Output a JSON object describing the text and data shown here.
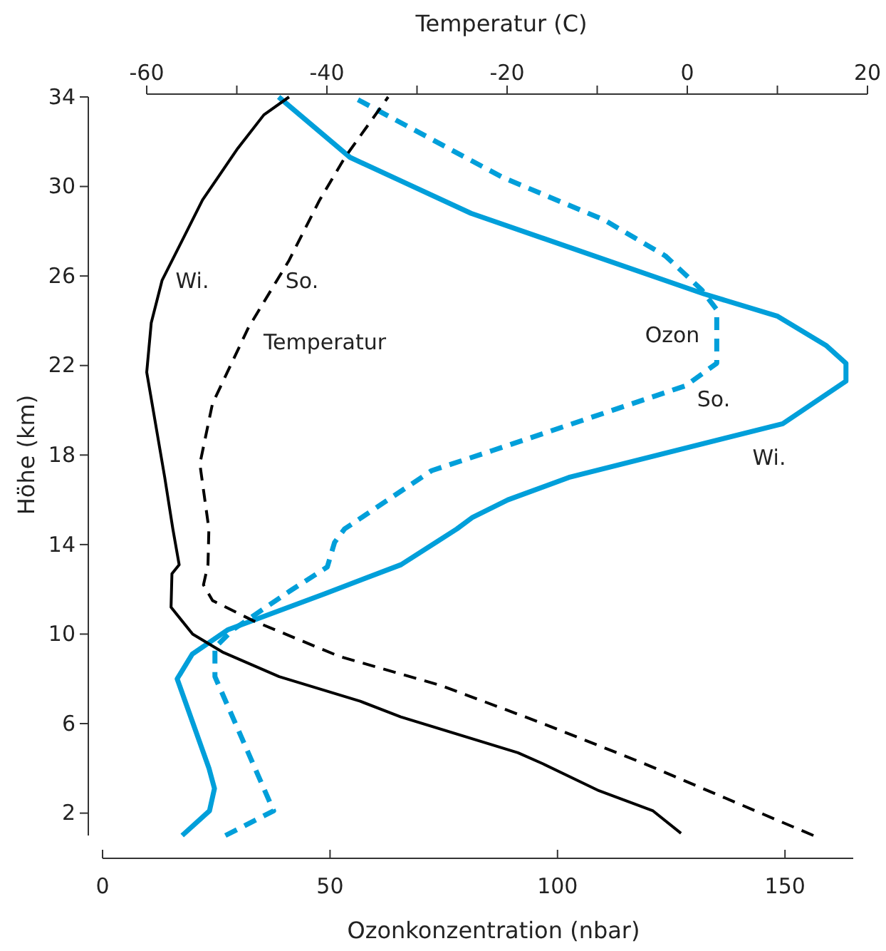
{
  "chart_data": {
    "type": "line",
    "xlabel": "Ozonkonzentration (nbar)",
    "x2label": "Temperatur (C)",
    "ylabel": "Höhe (km)",
    "xlim": [
      0,
      165
    ],
    "xticks": [
      0,
      50,
      100,
      150
    ],
    "x2lim": [
      -60,
      20
    ],
    "x2ticks": [
      -60,
      {
        "value": -50,
        "label": null
      },
      -40,
      {
        "value": -30,
        "label": null
      },
      -20,
      {
        "value": -10,
        "label": null
      },
      0,
      {
        "value": 10,
        "label": null
      },
      20
    ],
    "ylim": [
      1,
      34
    ],
    "yticks": [
      2,
      6,
      10,
      14,
      18,
      22,
      26,
      30,
      34
    ],
    "grid": false,
    "marker": "none",
    "series": [
      {
        "color": "#009fda",
        "line_style": "solid",
        "x": [
          17.5,
          23.5,
          24.6,
          23.4,
          16.4,
          19.7,
          27.6,
          48.8,
          65.6,
          77.9,
          81.2,
          89.1,
          102.5,
          149.5,
          163.4,
          163.4,
          159,
          148.4,
          132.2,
          81,
          54.4,
          38.7
        ],
        "values": [
          1.0,
          2.1,
          3.1,
          4.0,
          8.0,
          9.1,
          10.2,
          11.8,
          13.1,
          14.7,
          15.2,
          16.0,
          17.0,
          19.4,
          21.3,
          22.1,
          22.9,
          24.2,
          25.2,
          28.8,
          31.3,
          34
        ]
      },
      {
        "color": "#009fda",
        "line_style": "dashed",
        "x": [
          27,
          37.6,
          24.7,
          24.7,
          28.7,
          41,
          49.4,
          51,
          53.2,
          72.3,
          85.7,
          128.2,
          135,
          135,
          131.6,
          123.7,
          110.3,
          88,
          55
        ],
        "values": [
          1.0,
          2.1,
          8.1,
          9.4,
          10.2,
          11.9,
          13.0,
          14.1,
          14.7,
          17.3,
          18.2,
          21.1,
          22.1,
          24.5,
          25.4,
          26.9,
          28.5,
          30.4,
          34
        ]
      },
      {
        "color": "#000000",
        "line_style": "solid",
        "axis": "x2",
        "x": [
          -0.7,
          -3.8,
          -9.8,
          -16,
          -18.8,
          -31.8,
          -36.3,
          -45.3,
          -51.6,
          -54.9,
          -57.3,
          -57.2,
          -56.4,
          -57.1,
          -58,
          -60,
          -59.5,
          -58.3,
          -53.8,
          -49.9,
          -47,
          -44.2
        ],
        "values": [
          1.1,
          2.1,
          3.0,
          4.2,
          4.7,
          6.3,
          7.0,
          8.1,
          9.2,
          10.0,
          11.2,
          12.7,
          13.1,
          14.7,
          17.0,
          21.7,
          23.9,
          25.8,
          29.4,
          31.7,
          33.2,
          34
        ]
      },
      {
        "color": "#000000",
        "line_style": "dashed",
        "axis": "x2",
        "x": [
          14,
          -4.7,
          -16,
          -27.3,
          -38.6,
          -48.2,
          -52.7,
          -53.7,
          -53.2,
          -53.1,
          -54.1,
          -52.7,
          -48.7,
          -44.2,
          -40.8,
          -38,
          -33.2
        ],
        "values": [
          1.0,
          4.2,
          6.0,
          7.7,
          9.0,
          10.6,
          11.5,
          12.2,
          13.1,
          14.7,
          17.6,
          20.3,
          23.7,
          26.7,
          29.4,
          31.3,
          34
        ]
      }
    ],
    "annotations": [
      "Wi.",
      "So.",
      "Temperatur",
      "Ozon",
      "So.",
      "Wi."
    ]
  }
}
